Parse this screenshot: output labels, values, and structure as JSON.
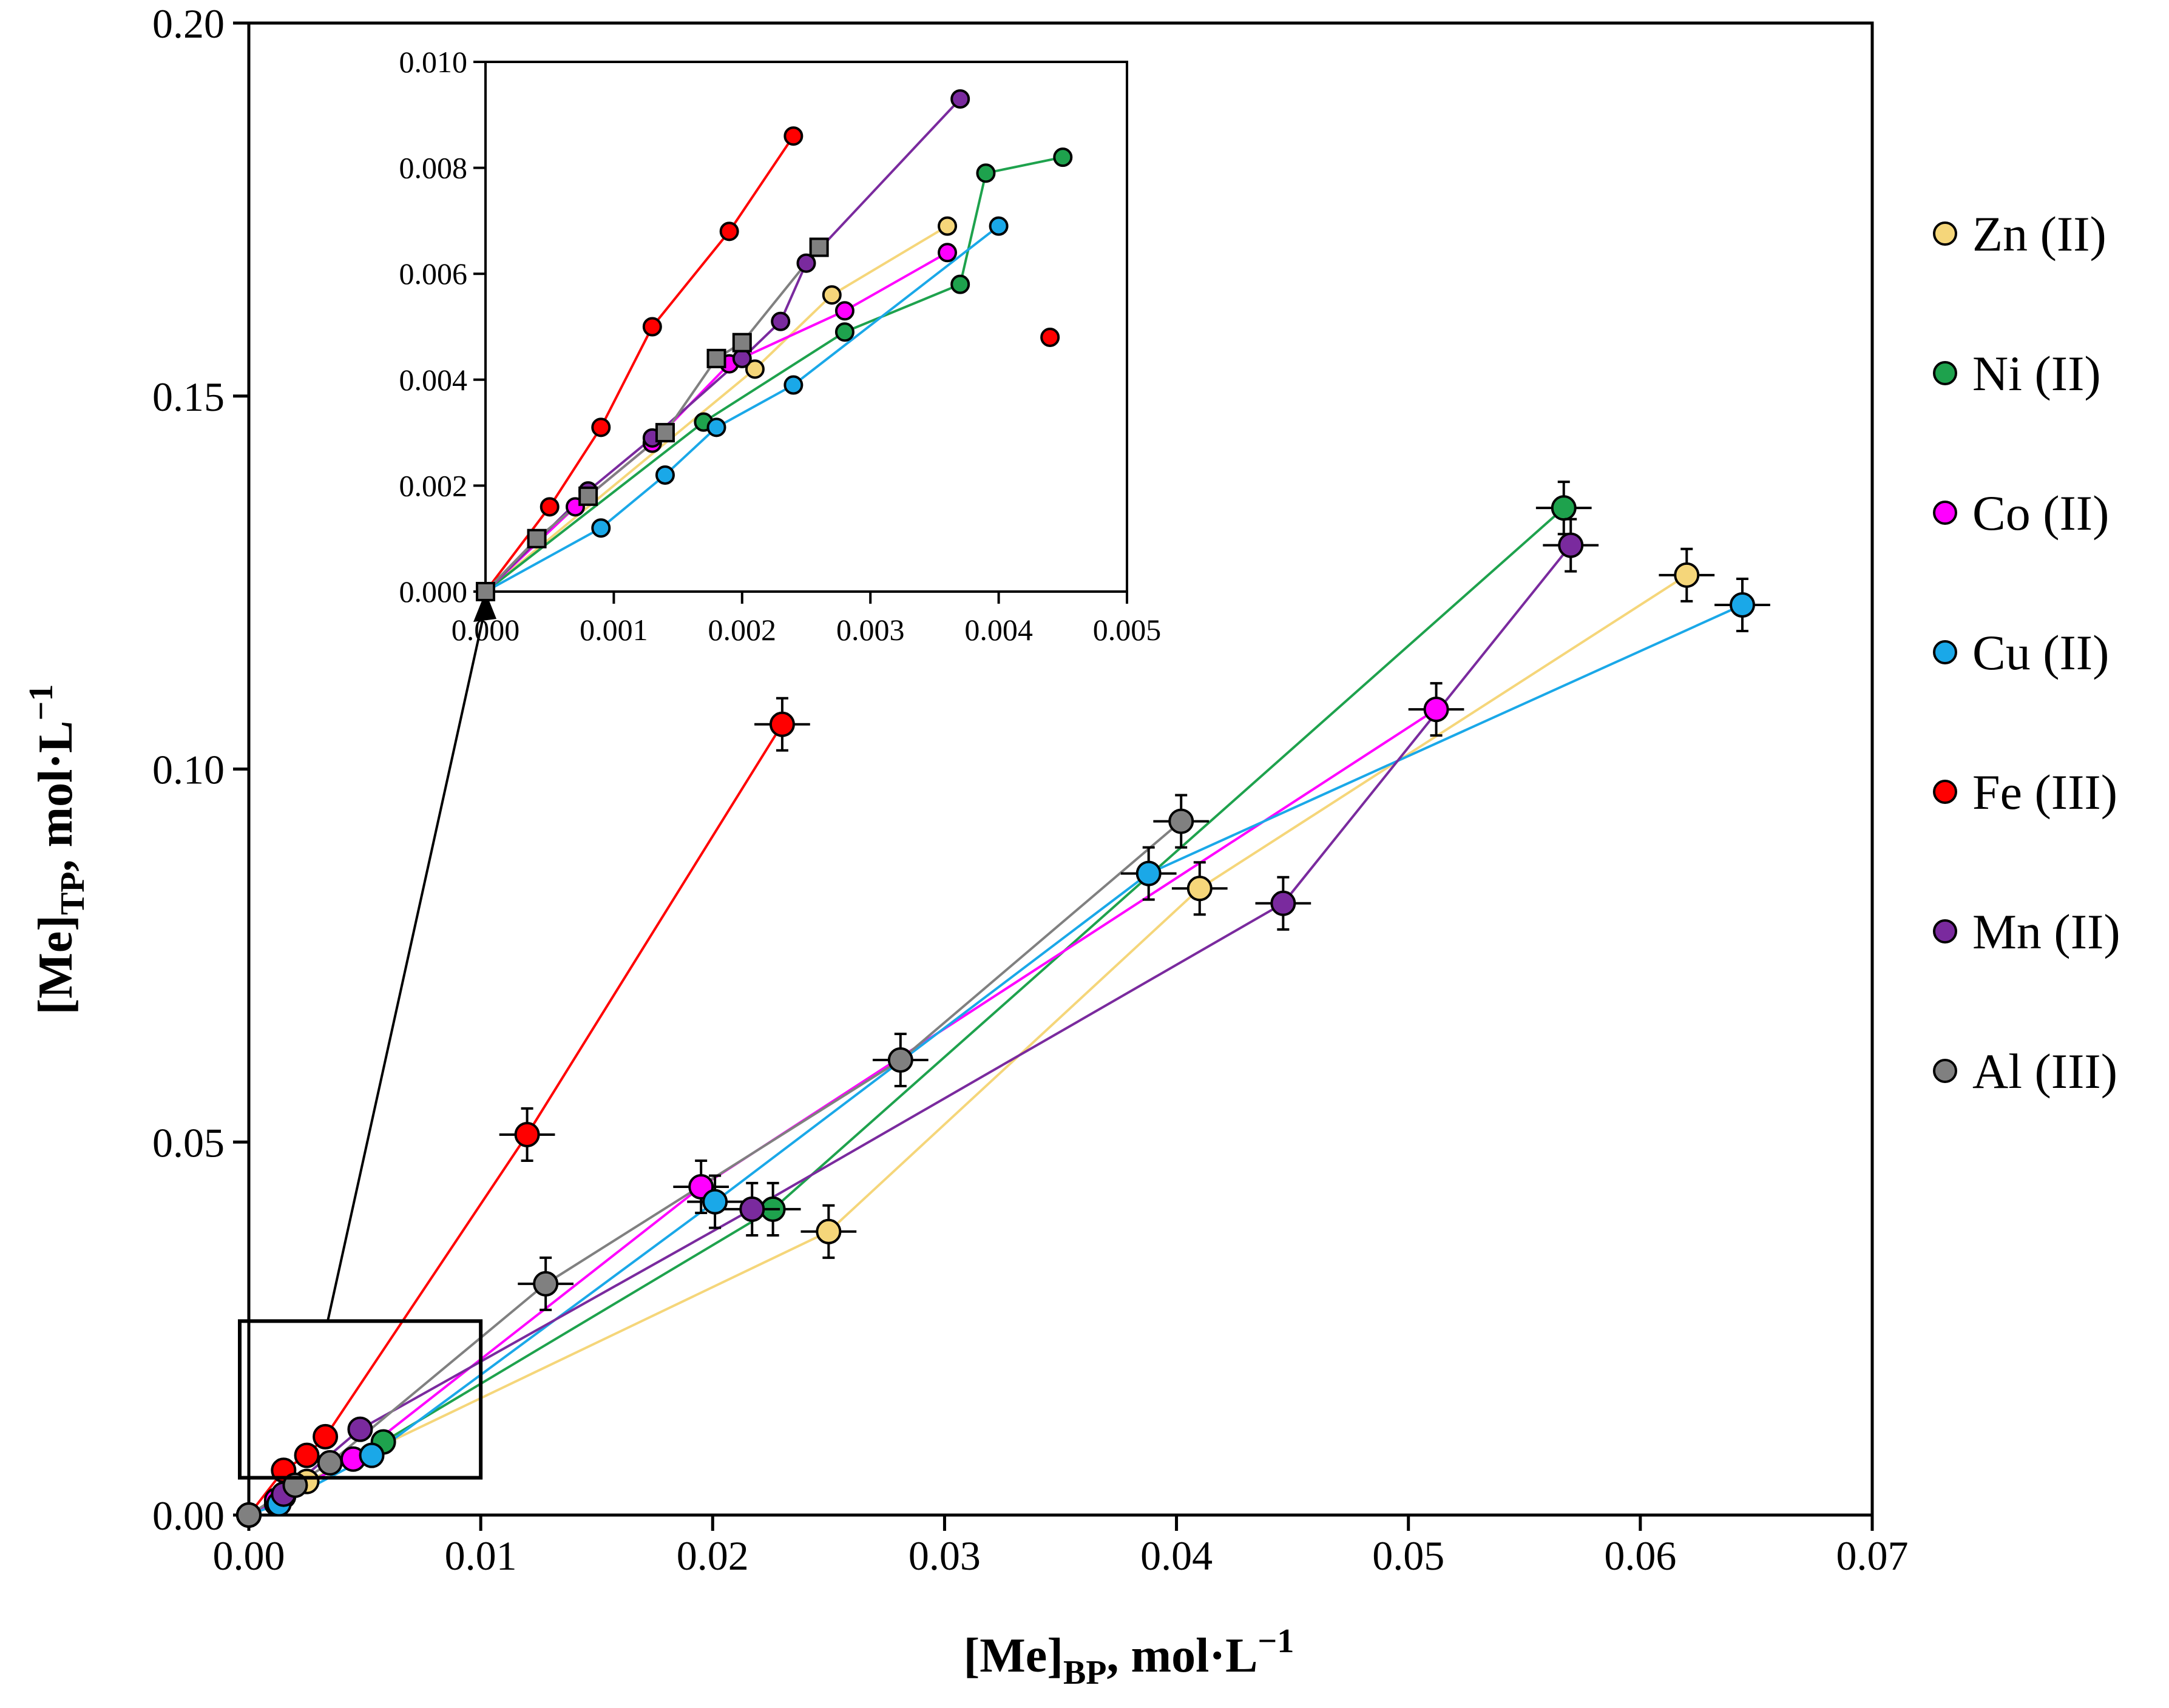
{
  "chart_data": [
    {
      "type": "scatter",
      "panel": "main",
      "xlabel": "[Me]BP, mol·L−1",
      "ylabel": "[Me]TP, mol·L−1",
      "xlabel_parts": {
        "main": "[Me]",
        "sub": "BP",
        "tail": ", mol·L",
        "sup": "−1"
      },
      "ylabel_parts": {
        "main": "[Me]",
        "sub": "TP",
        "tail": ", mol·L",
        "sup": "−1"
      },
      "xlim": [
        0.0,
        0.07
      ],
      "ylim": [
        0.0,
        0.2
      ],
      "xticks": [
        "0.00",
        "0.01",
        "0.02",
        "0.03",
        "0.04",
        "0.05",
        "0.06",
        "0.07"
      ],
      "yticks": [
        "0.00",
        "0.05",
        "0.10",
        "0.15",
        "0.20"
      ],
      "legend_position": "right",
      "series": [
        {
          "name": "Zn (II)",
          "color": "#f5d67a",
          "points": [
            [
              0.0,
              0.0
            ],
            [
              0.0012,
              0.0015
            ],
            [
              0.0025,
              0.0045
            ],
            [
              0.025,
              0.038
            ],
            [
              0.041,
              0.084
            ],
            [
              0.062,
              0.126
            ]
          ]
        },
        {
          "name": "Ni (II)",
          "color": "#1ea24d",
          "points": [
            [
              0.0,
              0.0
            ],
            [
              0.0015,
              0.0025
            ],
            [
              0.0058,
              0.0098
            ],
            [
              0.0226,
              0.041
            ],
            [
              0.0567,
              0.135
            ]
          ]
        },
        {
          "name": "Co (II)",
          "color": "#ff00ff",
          "points": [
            [
              0.0,
              0.0
            ],
            [
              0.0012,
              0.002
            ],
            [
              0.0045,
              0.0075
            ],
            [
              0.0195,
              0.044
            ],
            [
              0.0512,
              0.108
            ]
          ]
        },
        {
          "name": "Cu (II)",
          "color": "#1aa8e8",
          "points": [
            [
              0.0,
              0.0
            ],
            [
              0.0013,
              0.0015
            ],
            [
              0.0053,
              0.008
            ],
            [
              0.0201,
              0.042
            ],
            [
              0.0388,
              0.086
            ],
            [
              0.0644,
              0.122
            ]
          ]
        },
        {
          "name": "Fe (III)",
          "color": "#ff0000",
          "points": [
            [
              0.0,
              0.0
            ],
            [
              0.0015,
              0.006
            ],
            [
              0.0025,
              0.008
            ],
            [
              0.0033,
              0.0105
            ],
            [
              0.012,
              0.051
            ],
            [
              0.023,
              0.106
            ]
          ]
        },
        {
          "name": "Mn (II)",
          "color": "#7a2a9e",
          "points": [
            [
              0.0,
              0.0
            ],
            [
              0.0015,
              0.0028
            ],
            [
              0.0048,
              0.0115
            ],
            [
              0.0217,
              0.041
            ],
            [
              0.0446,
              0.082
            ],
            [
              0.057,
              0.13
            ]
          ]
        },
        {
          "name": "Al (III)",
          "color": "#808080",
          "points": [
            [
              0.0,
              0.0
            ],
            [
              0.002,
              0.004
            ],
            [
              0.0035,
              0.007
            ],
            [
              0.0128,
              0.031
            ],
            [
              0.0281,
              0.061
            ],
            [
              0.0402,
              0.093
            ]
          ]
        }
      ],
      "annotation": "zoom box [0, 0.01] × [0.005, 0.026] → inset"
    },
    {
      "type": "scatter",
      "panel": "inset",
      "xlim": [
        0.0,
        0.005
      ],
      "ylim": [
        0.0,
        0.01
      ],
      "xticks": [
        "0.000",
        "0.001",
        "0.002",
        "0.003",
        "0.004",
        "0.005"
      ],
      "yticks": [
        "0.000",
        "0.002",
        "0.004",
        "0.006",
        "0.008",
        "0.010"
      ],
      "series": [
        {
          "name": "Zn (II)",
          "color": "#f5d67a",
          "points": [
            [
              0.0,
              0.0
            ],
            [
              0.0021,
              0.0042
            ],
            [
              0.0027,
              0.0056
            ],
            [
              0.0036,
              0.0069
            ]
          ]
        },
        {
          "name": "Ni (II)",
          "color": "#1ea24d",
          "points": [
            [
              0.0,
              0.0
            ],
            [
              0.0017,
              0.0032
            ],
            [
              0.0028,
              0.0049
            ],
            [
              0.0037,
              0.0058
            ],
            [
              0.0039,
              0.0079
            ],
            [
              0.0045,
              0.0082
            ]
          ]
        },
        {
          "name": "Co (II)",
          "color": "#ff00ff",
          "points": [
            [
              0.0,
              0.0
            ],
            [
              0.0007,
              0.0016
            ],
            [
              0.0013,
              0.0028
            ],
            [
              0.0019,
              0.0043
            ],
            [
              0.0028,
              0.0053
            ],
            [
              0.0036,
              0.0064
            ]
          ]
        },
        {
          "name": "Cu (II)",
          "color": "#1aa8e8",
          "points": [
            [
              0.0,
              0.0
            ],
            [
              0.0009,
              0.0012
            ],
            [
              0.0014,
              0.0022
            ],
            [
              0.0018,
              0.0031
            ],
            [
              0.0024,
              0.0039
            ],
            [
              0.004,
              0.0069
            ]
          ]
        },
        {
          "name": "Fe (III)",
          "color": "#ff0000",
          "points": [
            [
              0.0,
              0.0
            ],
            [
              0.0005,
              0.0016
            ],
            [
              0.0009,
              0.0031
            ],
            [
              0.0013,
              0.005
            ],
            [
              0.0019,
              0.0068
            ],
            [
              0.0024,
              0.0086
            ],
            [
              0.0044,
              0.0048
            ]
          ]
        },
        {
          "name": "Mn (II)",
          "color": "#7a2a9e",
          "points": [
            [
              0.0,
              0.0
            ],
            [
              0.0008,
              0.0019
            ],
            [
              0.0013,
              0.0029
            ],
            [
              0.002,
              0.0044
            ],
            [
              0.0023,
              0.0051
            ],
            [
              0.0025,
              0.0062
            ],
            [
              0.0037,
              0.0093
            ]
          ]
        },
        {
          "name": "Al (III)",
          "color": "#808080",
          "points": [
            [
              0.0,
              0.0
            ],
            [
              0.0004,
              0.001
            ],
            [
              0.0008,
              0.0018
            ],
            [
              0.0014,
              0.003
            ],
            [
              0.0018,
              0.0044
            ],
            [
              0.002,
              0.0047
            ],
            [
              0.0026,
              0.0065
            ]
          ]
        }
      ]
    }
  ]
}
